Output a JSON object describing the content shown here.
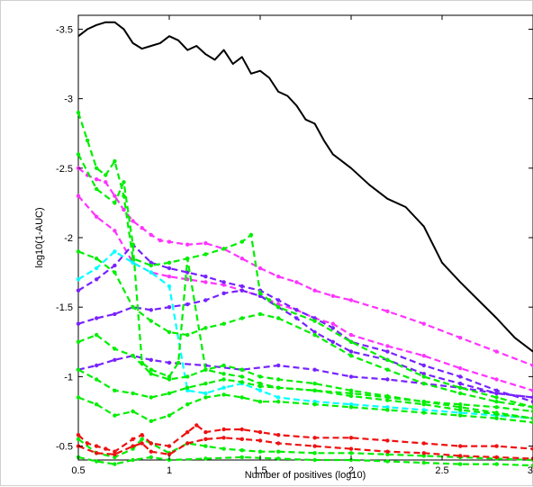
{
  "chart_data": {
    "type": "line",
    "title": "",
    "xlabel": "Number of positives (log10)",
    "ylabel": "log10(1-AUC)",
    "xlim": [
      0.5,
      3
    ],
    "ylim": [
      -0.4,
      -3.6
    ],
    "y_axis_inverted": true,
    "grid": false,
    "legend": "none",
    "x_ticks": [
      "0.5",
      "1",
      "1.5",
      "2",
      "2.5",
      "3"
    ],
    "x_tick_values": [
      0.5,
      1,
      1.5,
      2,
      2.5,
      3
    ],
    "y_ticks": [
      "-3.5",
      "-3",
      "-2.5",
      "-2",
      "-1.5",
      "-1",
      "-0.5"
    ],
    "y_tick_values": [
      -3.5,
      -3,
      -2.5,
      -2,
      -1.5,
      -1,
      -0.5
    ],
    "series": [
      {
        "color": "#000000",
        "style": "solid",
        "x": [
          0.5,
          0.55,
          0.6,
          0.65,
          0.7,
          0.75,
          0.8,
          0.85,
          0.9,
          0.95,
          1.0,
          1.05,
          1.1,
          1.15,
          1.2,
          1.25,
          1.3,
          1.35,
          1.4,
          1.45,
          1.5,
          1.55,
          1.6,
          1.65,
          1.7,
          1.75,
          1.8,
          1.85,
          1.9,
          1.95,
          2.0,
          2.1,
          2.2,
          2.3,
          2.4,
          2.5,
          2.6,
          2.7,
          2.8,
          2.9,
          3.0
        ],
        "values": [
          -3.45,
          -3.5,
          -3.53,
          -3.55,
          -3.55,
          -3.5,
          -3.4,
          -3.36,
          -3.38,
          -3.4,
          -3.45,
          -3.42,
          -3.35,
          -3.38,
          -3.32,
          -3.28,
          -3.35,
          -3.25,
          -3.3,
          -3.18,
          -3.2,
          -3.15,
          -3.05,
          -3.02,
          -2.95,
          -2.85,
          -2.82,
          -2.7,
          -2.6,
          -2.55,
          -2.5,
          -2.38,
          -2.28,
          -2.22,
          -2.08,
          -1.82,
          -1.68,
          -1.55,
          -1.42,
          -1.28,
          -1.18
        ]
      },
      {
        "color": "#ff33ff",
        "style": "dashed",
        "x": [
          0.5,
          0.55,
          0.6,
          0.65,
          0.7,
          0.75,
          0.8,
          0.85,
          0.9,
          0.95,
          1.0,
          1.1,
          1.2,
          1.3,
          1.4,
          1.5,
          1.6,
          1.7,
          1.8,
          1.9,
          2.0,
          2.2,
          2.4,
          2.6,
          2.8,
          3.0
        ],
        "values": [
          -2.5,
          -2.45,
          -2.42,
          -2.4,
          -2.3,
          -2.2,
          -2.12,
          -2.07,
          -2.02,
          -1.98,
          -1.97,
          -1.95,
          -1.96,
          -1.92,
          -1.85,
          -1.78,
          -1.72,
          -1.68,
          -1.62,
          -1.58,
          -1.55,
          -1.47,
          -1.38,
          -1.28,
          -1.18,
          -1.08
        ]
      },
      {
        "color": "#ff33ff",
        "style": "dashed",
        "x": [
          0.5,
          0.6,
          0.7,
          0.8,
          0.9,
          1.0,
          1.1,
          1.2,
          1.3,
          1.4,
          1.5,
          1.6,
          1.7,
          1.8,
          1.9,
          2.0,
          2.2,
          2.4,
          2.6,
          2.8,
          3.0
        ],
        "values": [
          -2.3,
          -2.15,
          -2.05,
          -1.82,
          -1.75,
          -1.72,
          -1.7,
          -1.68,
          -1.66,
          -1.62,
          -1.58,
          -1.52,
          -1.48,
          -1.42,
          -1.38,
          -1.3,
          -1.22,
          -1.15,
          -1.06,
          -0.98,
          -0.9
        ]
      },
      {
        "color": "#7722ff",
        "style": "dashed",
        "x": [
          0.5,
          0.6,
          0.7,
          0.8,
          0.9,
          1.0,
          1.1,
          1.2,
          1.3,
          1.4,
          1.5,
          1.6,
          1.7,
          1.8,
          1.9,
          2.0,
          2.2,
          2.4,
          2.6,
          2.8,
          3.0
        ],
        "values": [
          -1.62,
          -1.7,
          -1.8,
          -1.95,
          -1.82,
          -1.78,
          -1.75,
          -1.72,
          -1.68,
          -1.65,
          -1.62,
          -1.55,
          -1.48,
          -1.42,
          -1.35,
          -1.25,
          -1.18,
          -1.08,
          -1.0,
          -0.9,
          -0.82
        ]
      },
      {
        "color": "#7722ff",
        "style": "dashed",
        "x": [
          0.5,
          0.6,
          0.7,
          0.8,
          0.9,
          1.0,
          1.1,
          1.2,
          1.3,
          1.4,
          1.5,
          1.6,
          1.7,
          1.8,
          1.9,
          2.0,
          2.2,
          2.4,
          2.6,
          2.8,
          3.0
        ],
        "values": [
          -1.38,
          -1.42,
          -1.45,
          -1.5,
          -1.48,
          -1.5,
          -1.52,
          -1.55,
          -1.6,
          -1.62,
          -1.58,
          -1.5,
          -1.42,
          -1.32,
          -1.25,
          -1.18,
          -1.12,
          -1.02,
          -0.95,
          -0.88,
          -0.85
        ]
      },
      {
        "color": "#7722ff",
        "style": "dashed",
        "x": [
          0.5,
          0.6,
          0.7,
          0.8,
          0.9,
          1.0,
          1.2,
          1.4,
          1.6,
          1.8,
          2.0,
          2.2,
          2.4,
          2.6,
          2.8,
          3.0
        ],
        "values": [
          -1.05,
          -1.08,
          -1.12,
          -1.15,
          -1.12,
          -1.1,
          -1.08,
          -1.05,
          -1.08,
          -1.05,
          -1.0,
          -0.98,
          -0.95,
          -0.92,
          -0.88,
          -0.85
        ]
      },
      {
        "color": "#00ffff",
        "style": "dashed",
        "x": [
          0.5,
          0.6,
          0.7,
          0.8,
          0.9,
          1.0,
          1.1,
          1.2,
          1.3,
          1.4,
          1.5,
          1.6,
          1.8,
          2.0,
          2.2,
          2.4,
          2.6,
          2.8,
          3.0
        ],
        "values": [
          -1.7,
          -1.78,
          -1.9,
          -1.82,
          -1.75,
          -1.65,
          -0.9,
          -0.88,
          -0.92,
          -0.95,
          -0.9,
          -0.85,
          -0.82,
          -0.8,
          -0.78,
          -0.76,
          -0.74,
          -0.72,
          -0.7
        ]
      },
      {
        "color": "#00ee00",
        "style": "dashed",
        "x": [
          0.5,
          0.55,
          0.6,
          0.65,
          0.7,
          0.75,
          0.8,
          0.9,
          1.0,
          1.1,
          1.2,
          1.3,
          1.4,
          1.45,
          1.5,
          1.55,
          1.6,
          1.8,
          2.0,
          2.2,
          2.4,
          2.6,
          2.8,
          3.0
        ],
        "values": [
          -2.9,
          -2.7,
          -2.5,
          -2.45,
          -2.55,
          -2.3,
          -1.85,
          -1.8,
          -1.82,
          -1.85,
          -1.88,
          -1.92,
          -1.97,
          -2.02,
          -1.6,
          -1.55,
          -1.5,
          -1.4,
          -1.25,
          -1.12,
          -1.0,
          -0.92,
          -0.85,
          -0.78
        ]
      },
      {
        "color": "#00ee00",
        "style": "dashed",
        "x": [
          0.5,
          0.6,
          0.7,
          0.75,
          0.8,
          0.85,
          0.9,
          1.0,
          1.05,
          1.1,
          1.2,
          1.3,
          1.4,
          1.5,
          1.6,
          1.8,
          2.0,
          2.2,
          2.4,
          2.6,
          2.8,
          3.0
        ],
        "values": [
          -2.6,
          -2.35,
          -2.25,
          -2.4,
          -1.95,
          -1.1,
          -1.05,
          -1.0,
          -1.1,
          -1.85,
          -1.05,
          -1.02,
          -1.0,
          -0.95,
          -0.92,
          -0.9,
          -0.88,
          -0.85,
          -0.82,
          -0.8,
          -0.78,
          -0.75
        ]
      },
      {
        "color": "#00ee00",
        "style": "dashed",
        "x": [
          0.5,
          0.6,
          0.7,
          0.8,
          0.9,
          1.0,
          1.1,
          1.2,
          1.3,
          1.4,
          1.5,
          1.6,
          1.8,
          2.0,
          2.2,
          2.4,
          2.6,
          2.8,
          3.0
        ],
        "values": [
          -1.9,
          -1.85,
          -1.75,
          -1.5,
          -1.4,
          -1.32,
          -1.3,
          -1.35,
          -1.38,
          -1.42,
          -1.45,
          -1.42,
          -1.3,
          -1.15,
          -1.05,
          -0.95,
          -0.88,
          -0.82,
          -0.78
        ]
      },
      {
        "color": "#00ee00",
        "style": "dashed",
        "x": [
          0.5,
          0.6,
          0.7,
          0.8,
          0.9,
          1.0,
          1.1,
          1.2,
          1.3,
          1.4,
          1.5,
          1.6,
          1.8,
          2.0,
          2.2,
          2.4,
          2.6,
          2.8,
          3.0
        ],
        "values": [
          -1.25,
          -1.3,
          -1.2,
          -1.15,
          -1.02,
          -0.98,
          -1.0,
          -1.05,
          -1.08,
          -1.05,
          -1.0,
          -0.98,
          -0.95,
          -0.9,
          -0.86,
          -0.82,
          -0.78,
          -0.74,
          -0.7
        ]
      },
      {
        "color": "#00ee00",
        "style": "dashed",
        "x": [
          0.5,
          0.6,
          0.7,
          0.8,
          0.9,
          1.0,
          1.1,
          1.2,
          1.3,
          1.4,
          1.5,
          1.6,
          1.8,
          2.0,
          2.2,
          2.4,
          2.6,
          2.8,
          3.0
        ],
        "values": [
          -1.05,
          -0.98,
          -0.9,
          -0.88,
          -0.85,
          -0.88,
          -0.92,
          -0.95,
          -0.98,
          -0.96,
          -0.93,
          -0.92,
          -0.9,
          -0.86,
          -0.83,
          -0.8,
          -0.76,
          -0.73,
          -0.7
        ]
      },
      {
        "color": "#00ee00",
        "style": "dashed",
        "x": [
          0.5,
          0.6,
          0.7,
          0.8,
          0.9,
          1.0,
          1.1,
          1.2,
          1.3,
          1.4,
          1.5,
          1.6,
          1.8,
          2.0,
          2.2,
          2.4,
          2.6,
          2.8,
          3.0
        ],
        "values": [
          -0.85,
          -0.8,
          -0.72,
          -0.75,
          -0.68,
          -0.72,
          -0.8,
          -0.85,
          -0.87,
          -0.85,
          -0.82,
          -0.82,
          -0.8,
          -0.78,
          -0.76,
          -0.74,
          -0.72,
          -0.7,
          -0.67
        ]
      },
      {
        "color": "#00ee00",
        "style": "dashed",
        "x": [
          0.5,
          0.6,
          0.7,
          0.8,
          0.85,
          0.9,
          1.0,
          1.1,
          1.2,
          1.3,
          1.4,
          1.5,
          1.6,
          1.8,
          2.0,
          2.2,
          2.4,
          2.6,
          2.8,
          3.0
        ],
        "values": [
          -0.55,
          -0.45,
          -0.42,
          -0.48,
          -0.55,
          -0.52,
          -0.45,
          -0.52,
          -0.5,
          -0.48,
          -0.47,
          -0.46,
          -0.46,
          -0.45,
          -0.45,
          -0.44,
          -0.43,
          -0.42,
          -0.41,
          -0.4
        ]
      },
      {
        "color": "#ee1111",
        "style": "dashed",
        "x": [
          0.5,
          0.55,
          0.6,
          0.65,
          0.7,
          0.8,
          0.85,
          0.9,
          1.0,
          1.1,
          1.15,
          1.2,
          1.3,
          1.4,
          1.5,
          1.6,
          1.8,
          2.0,
          2.2,
          2.4,
          2.6,
          2.8,
          3.0
        ],
        "values": [
          -0.58,
          -0.52,
          -0.5,
          -0.48,
          -0.46,
          -0.55,
          -0.58,
          -0.52,
          -0.5,
          -0.6,
          -0.65,
          -0.6,
          -0.62,
          -0.62,
          -0.6,
          -0.58,
          -0.56,
          -0.56,
          -0.54,
          -0.52,
          -0.5,
          -0.5,
          -0.48
        ]
      },
      {
        "color": "#ee1111",
        "style": "dashed",
        "x": [
          0.5,
          0.6,
          0.7,
          0.8,
          0.85,
          0.9,
          1.0,
          1.1,
          1.2,
          1.3,
          1.4,
          1.5,
          1.6,
          1.8,
          2.0,
          2.2,
          2.4,
          2.6,
          2.8,
          3.0
        ],
        "values": [
          -0.5,
          -0.45,
          -0.44,
          -0.5,
          -0.52,
          -0.46,
          -0.44,
          -0.52,
          -0.55,
          -0.56,
          -0.55,
          -0.54,
          -0.52,
          -0.5,
          -0.48,
          -0.46,
          -0.45,
          -0.43,
          -0.42,
          -0.41
        ]
      },
      {
        "color": "#00ee00",
        "style": "dashed",
        "x": [
          0.5,
          0.6,
          0.7,
          0.8,
          0.9,
          1.0,
          1.2,
          1.4,
          1.6,
          1.8,
          2.0,
          2.2,
          2.4,
          2.6,
          2.8,
          3.0
        ],
        "values": [
          -0.42,
          -0.39,
          -0.37,
          -0.4,
          -0.42,
          -0.4,
          -0.41,
          -0.42,
          -0.41,
          -0.4,
          -0.4,
          -0.39,
          -0.38,
          -0.37,
          -0.37,
          -0.36
        ]
      }
    ]
  }
}
